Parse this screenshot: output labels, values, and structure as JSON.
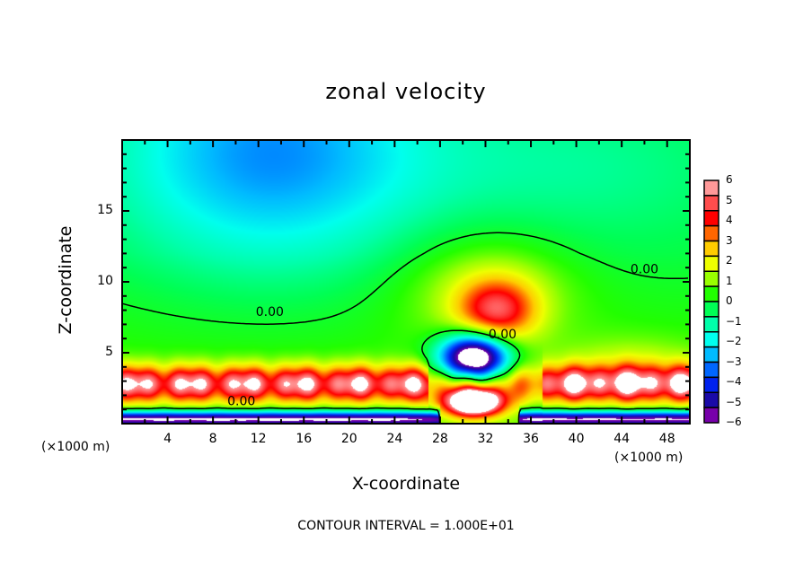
{
  "chart_data": {
    "type": "heatmap",
    "title": "zonal velocity",
    "xlabel": "X-coordinate",
    "ylabel": "Z-coordinate",
    "x_unit": "(×1000 m)",
    "xlim": [
      0,
      50
    ],
    "ylim": [
      0,
      20
    ],
    "x_ticks": [
      4,
      8,
      12,
      16,
      20,
      24,
      28,
      32,
      36,
      40,
      44,
      48
    ],
    "x_tick_labels": [
      "4",
      "8",
      "12",
      "16",
      "20",
      "24",
      "28",
      "32",
      "36",
      "40",
      "44",
      "48"
    ],
    "y_ticks": [
      5,
      10,
      15
    ],
    "y_tick_labels": [
      "5",
      "10",
      "15"
    ],
    "colorbar": {
      "min": -6,
      "max": 6,
      "tick_labels": [
        "6",
        "5",
        "4",
        "3",
        "2",
        "1",
        "0",
        "−1",
        "−2",
        "−3",
        "−4",
        "−5",
        "−6"
      ],
      "colors": [
        "#ff9999",
        "#ff4d4d",
        "#ff0000",
        "#ff6600",
        "#ffcc00",
        "#eeff00",
        "#99ff00",
        "#22ff00",
        "#00ff55",
        "#00ffaa",
        "#00ffee",
        "#00bbff",
        "#0066ff",
        "#0022ee",
        "#1a0aa8",
        "#7700aa"
      ]
    },
    "contour_labels": [
      "0.00",
      "0.00",
      "0.00",
      "0.00"
    ],
    "contour_level": 0.0,
    "features": [
      {
        "name": "upper easterly minimum",
        "x": 13,
        "z": 18,
        "value": -3
      },
      {
        "name": "negative core",
        "x": 31,
        "z": 4.5,
        "value": -7
      },
      {
        "name": "positive core",
        "x": 31,
        "z": 1.3,
        "value": 7
      },
      {
        "name": "positive lobe",
        "x": 33,
        "z": 8,
        "value": 4
      },
      {
        "name": "low-level positive jet",
        "x": 10,
        "z": 2.5,
        "value": 5
      }
    ],
    "footer": "CONTOUR INTERVAL = 1.000E+01"
  }
}
